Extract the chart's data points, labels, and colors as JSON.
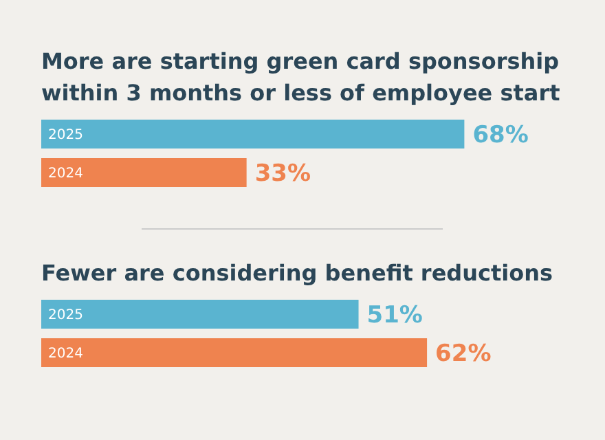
{
  "chart_data": [
    {
      "type": "bar",
      "orientation": "horizontal",
      "title": "More are starting green card sponsorship within 3 months or less of employee start",
      "categories": [
        "2025",
        "2024"
      ],
      "values": [
        68,
        33
      ],
      "colors": [
        "#5ab4d0",
        "#ef834f"
      ],
      "value_labels": [
        "68%",
        "33%"
      ]
    },
    {
      "type": "bar",
      "orientation": "horizontal",
      "title": "Fewer are considering benefit reductions",
      "categories": [
        "2025",
        "2024"
      ],
      "values": [
        51,
        62
      ],
      "colors": [
        "#5ab4d0",
        "#ef834f"
      ],
      "value_labels": [
        "51%",
        "62%"
      ]
    }
  ]
}
